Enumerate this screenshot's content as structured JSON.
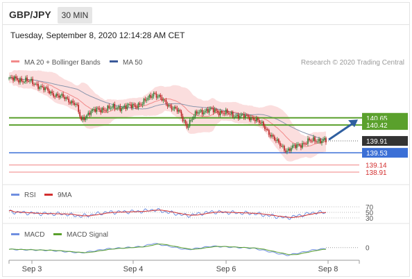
{
  "header": {
    "symbol": "GBP/JPY",
    "timeframe": "30 MIN",
    "datetime": "Tuesday, September 8, 2020 12:14:28 AM CET"
  },
  "legend": {
    "ma20_bb": "MA 20 + Bollinger Bands",
    "ma50": "MA 50",
    "rsi": "RSI",
    "rsi_ma": "9MA",
    "macd": "MACD",
    "macd_signal": "MACD Signal"
  },
  "credit": "Research © 2020 Trading Central",
  "colors": {
    "up": "#2e7d32",
    "down": "#b71c1c",
    "bb_fill": "#f7c3c3",
    "ma20": "#f28a8a",
    "ma50": "#8a95ac",
    "resistance": "#5aa02c",
    "pivot": "#3b6fd6",
    "support": "#f08080",
    "last": "#333333",
    "arrow": "#2f5fa0",
    "rsi": "#6f8fe0",
    "rsi_ma": "#d32f2f",
    "macd": "#6f8fe0",
    "macd_signal": "#5aa02c"
  },
  "levels": [
    {
      "value": 140.65,
      "label": "140.65",
      "kind": "resistance"
    },
    {
      "value": 140.42,
      "label": "140.42",
      "kind": "resistance"
    },
    {
      "value": 139.91,
      "label": "139.91",
      "kind": "last"
    },
    {
      "value": 139.53,
      "label": "139.53",
      "kind": "pivot"
    },
    {
      "value": 139.14,
      "label": "139.14",
      "kind": "support"
    },
    {
      "value": 138.91,
      "label": "138.91",
      "kind": "support"
    }
  ],
  "rsi_levels": [
    {
      "value": 70,
      "label": "70"
    },
    {
      "value": 50,
      "label": "50"
    },
    {
      "value": 30,
      "label": "30"
    }
  ],
  "macd_zero": {
    "value": 0,
    "label": "0"
  },
  "x_axis": {
    "ticks": [
      {
        "label": "Sep 3",
        "day": 0
      },
      {
        "label": "Sep 4",
        "day": 1
      },
      {
        "label": "Sep 6",
        "day": 2
      },
      {
        "label": "Sep 8",
        "day": 3
      }
    ]
  },
  "chart_data": {
    "type": "line",
    "title": "GBP/JPY",
    "timeframe": "30 MIN",
    "price_range": [
      138.6,
      142.2
    ],
    "close_path": [
      {
        "bar": 0,
        "close": 141.9
      },
      {
        "bar": 12,
        "close": 141.85
      },
      {
        "bar": 20,
        "close": 141.72
      },
      {
        "bar": 30,
        "close": 141.45
      },
      {
        "bar": 40,
        "close": 141.28
      },
      {
        "bar": 48,
        "close": 141.1
      },
      {
        "bar": 52,
        "close": 140.55
      },
      {
        "bar": 58,
        "close": 140.85
      },
      {
        "bar": 70,
        "close": 140.95
      },
      {
        "bar": 84,
        "close": 141.0
      },
      {
        "bar": 96,
        "close": 141.1
      },
      {
        "bar": 104,
        "close": 141.45
      },
      {
        "bar": 112,
        "close": 141.15
      },
      {
        "bar": 122,
        "close": 140.85
      },
      {
        "bar": 128,
        "close": 140.4
      },
      {
        "bar": 136,
        "close": 140.85
      },
      {
        "bar": 146,
        "close": 140.9
      },
      {
        "bar": 160,
        "close": 140.75
      },
      {
        "bar": 176,
        "close": 140.65
      },
      {
        "bar": 184,
        "close": 140.35
      },
      {
        "bar": 192,
        "close": 139.9
      },
      {
        "bar": 200,
        "close": 139.6
      },
      {
        "bar": 208,
        "close": 139.78
      },
      {
        "bar": 220,
        "close": 139.95
      },
      {
        "bar": 228,
        "close": 139.91
      }
    ],
    "bar_count": 229,
    "rsi_range": [
      20,
      80
    ],
    "rsi_path": [
      {
        "bar": 0,
        "rsi": 52
      },
      {
        "bar": 20,
        "rsi": 46
      },
      {
        "bar": 40,
        "rsi": 44
      },
      {
        "bar": 52,
        "rsi": 36
      },
      {
        "bar": 70,
        "rsi": 50
      },
      {
        "bar": 96,
        "rsi": 54
      },
      {
        "bar": 104,
        "rsi": 60
      },
      {
        "bar": 128,
        "rsi": 38
      },
      {
        "bar": 146,
        "rsi": 52
      },
      {
        "bar": 176,
        "rsi": 46
      },
      {
        "bar": 200,
        "rsi": 30
      },
      {
        "bar": 220,
        "rsi": 50
      },
      {
        "bar": 228,
        "rsi": 49
      }
    ],
    "macd_path": [
      {
        "bar": 0,
        "macd": -0.05
      },
      {
        "bar": 30,
        "macd": -0.08
      },
      {
        "bar": 52,
        "macd": -0.15
      },
      {
        "bar": 70,
        "macd": -0.04
      },
      {
        "bar": 96,
        "macd": 0.03
      },
      {
        "bar": 104,
        "macd": 0.12
      },
      {
        "bar": 128,
        "macd": -0.06
      },
      {
        "bar": 146,
        "macd": 0.04
      },
      {
        "bar": 176,
        "macd": -0.02
      },
      {
        "bar": 200,
        "macd": -0.22
      },
      {
        "bar": 220,
        "macd": -0.06
      },
      {
        "bar": 228,
        "macd": -0.03
      }
    ],
    "macd_range": [
      -0.3,
      0.25
    ]
  }
}
